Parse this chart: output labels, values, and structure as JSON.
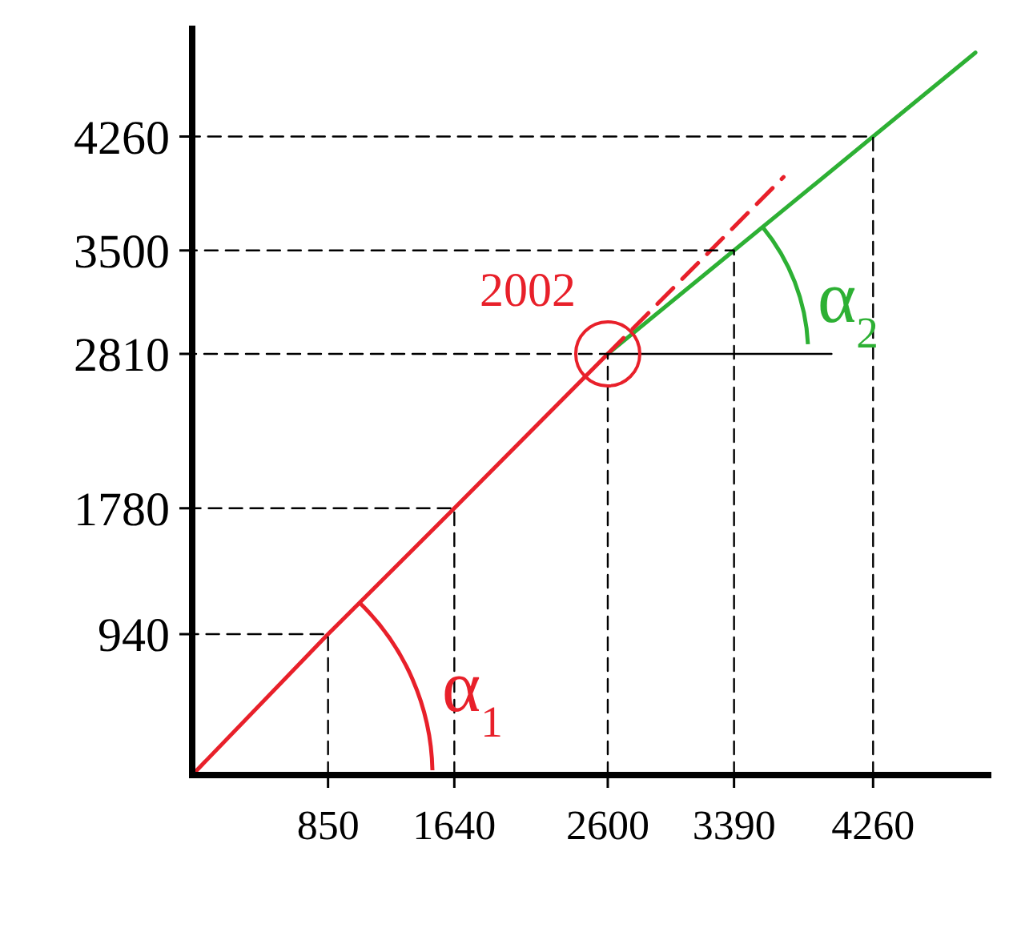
{
  "chart_data": {
    "type": "line",
    "xlim": [
      0,
      5000
    ],
    "ylim": [
      0,
      5000
    ],
    "xticks": [
      850,
      1640,
      2600,
      3390,
      4260
    ],
    "yticks": [
      940,
      1780,
      2810,
      3500,
      4260
    ],
    "series": [
      {
        "color": "#e8202a",
        "x": [
          0,
          850,
          1640,
          2600
        ],
        "values": [
          0,
          940,
          1780,
          2810
        ],
        "line_style": "solid"
      },
      {
        "color": "#2db034",
        "x": [
          2600,
          3390,
          4260,
          4900
        ],
        "values": [
          2810,
          3500,
          4260,
          4820
        ],
        "line_style": "solid"
      },
      {
        "color": "#e8202a",
        "x": [
          2600,
          3700
        ],
        "values": [
          2810,
          3990
        ],
        "line_style": "dashed"
      },
      {
        "color": "#000000",
        "x": [
          2600,
          4000
        ],
        "values": [
          2810,
          2810
        ],
        "line_style": "solid"
      },
      {
        "color": "#000000",
        "x": [
          850,
          850,
          0
        ],
        "values": [
          0,
          940,
          940
        ],
        "line_style": "dashed"
      },
      {
        "color": "#000000",
        "x": [
          1640,
          1640,
          0
        ],
        "values": [
          0,
          1780,
          1780
        ],
        "line_style": "dashed"
      },
      {
        "color": "#000000",
        "x": [
          2600,
          2600,
          0
        ],
        "values": [
          0,
          2810,
          2810
        ],
        "line_style": "dashed"
      },
      {
        "color": "#000000",
        "x": [
          3390,
          3390,
          0
        ],
        "values": [
          0,
          3500,
          3500
        ],
        "line_style": "dashed"
      },
      {
        "color": "#000000",
        "x": [
          4260,
          4260,
          0
        ],
        "values": [
          0,
          4260,
          4260
        ],
        "line_style": "dashed"
      }
    ],
    "annotations": [
      {
        "text": "2002",
        "x": 2600,
        "y": 2810
      },
      "α$_{1}$",
      "α$_{2}$"
    ]
  }
}
